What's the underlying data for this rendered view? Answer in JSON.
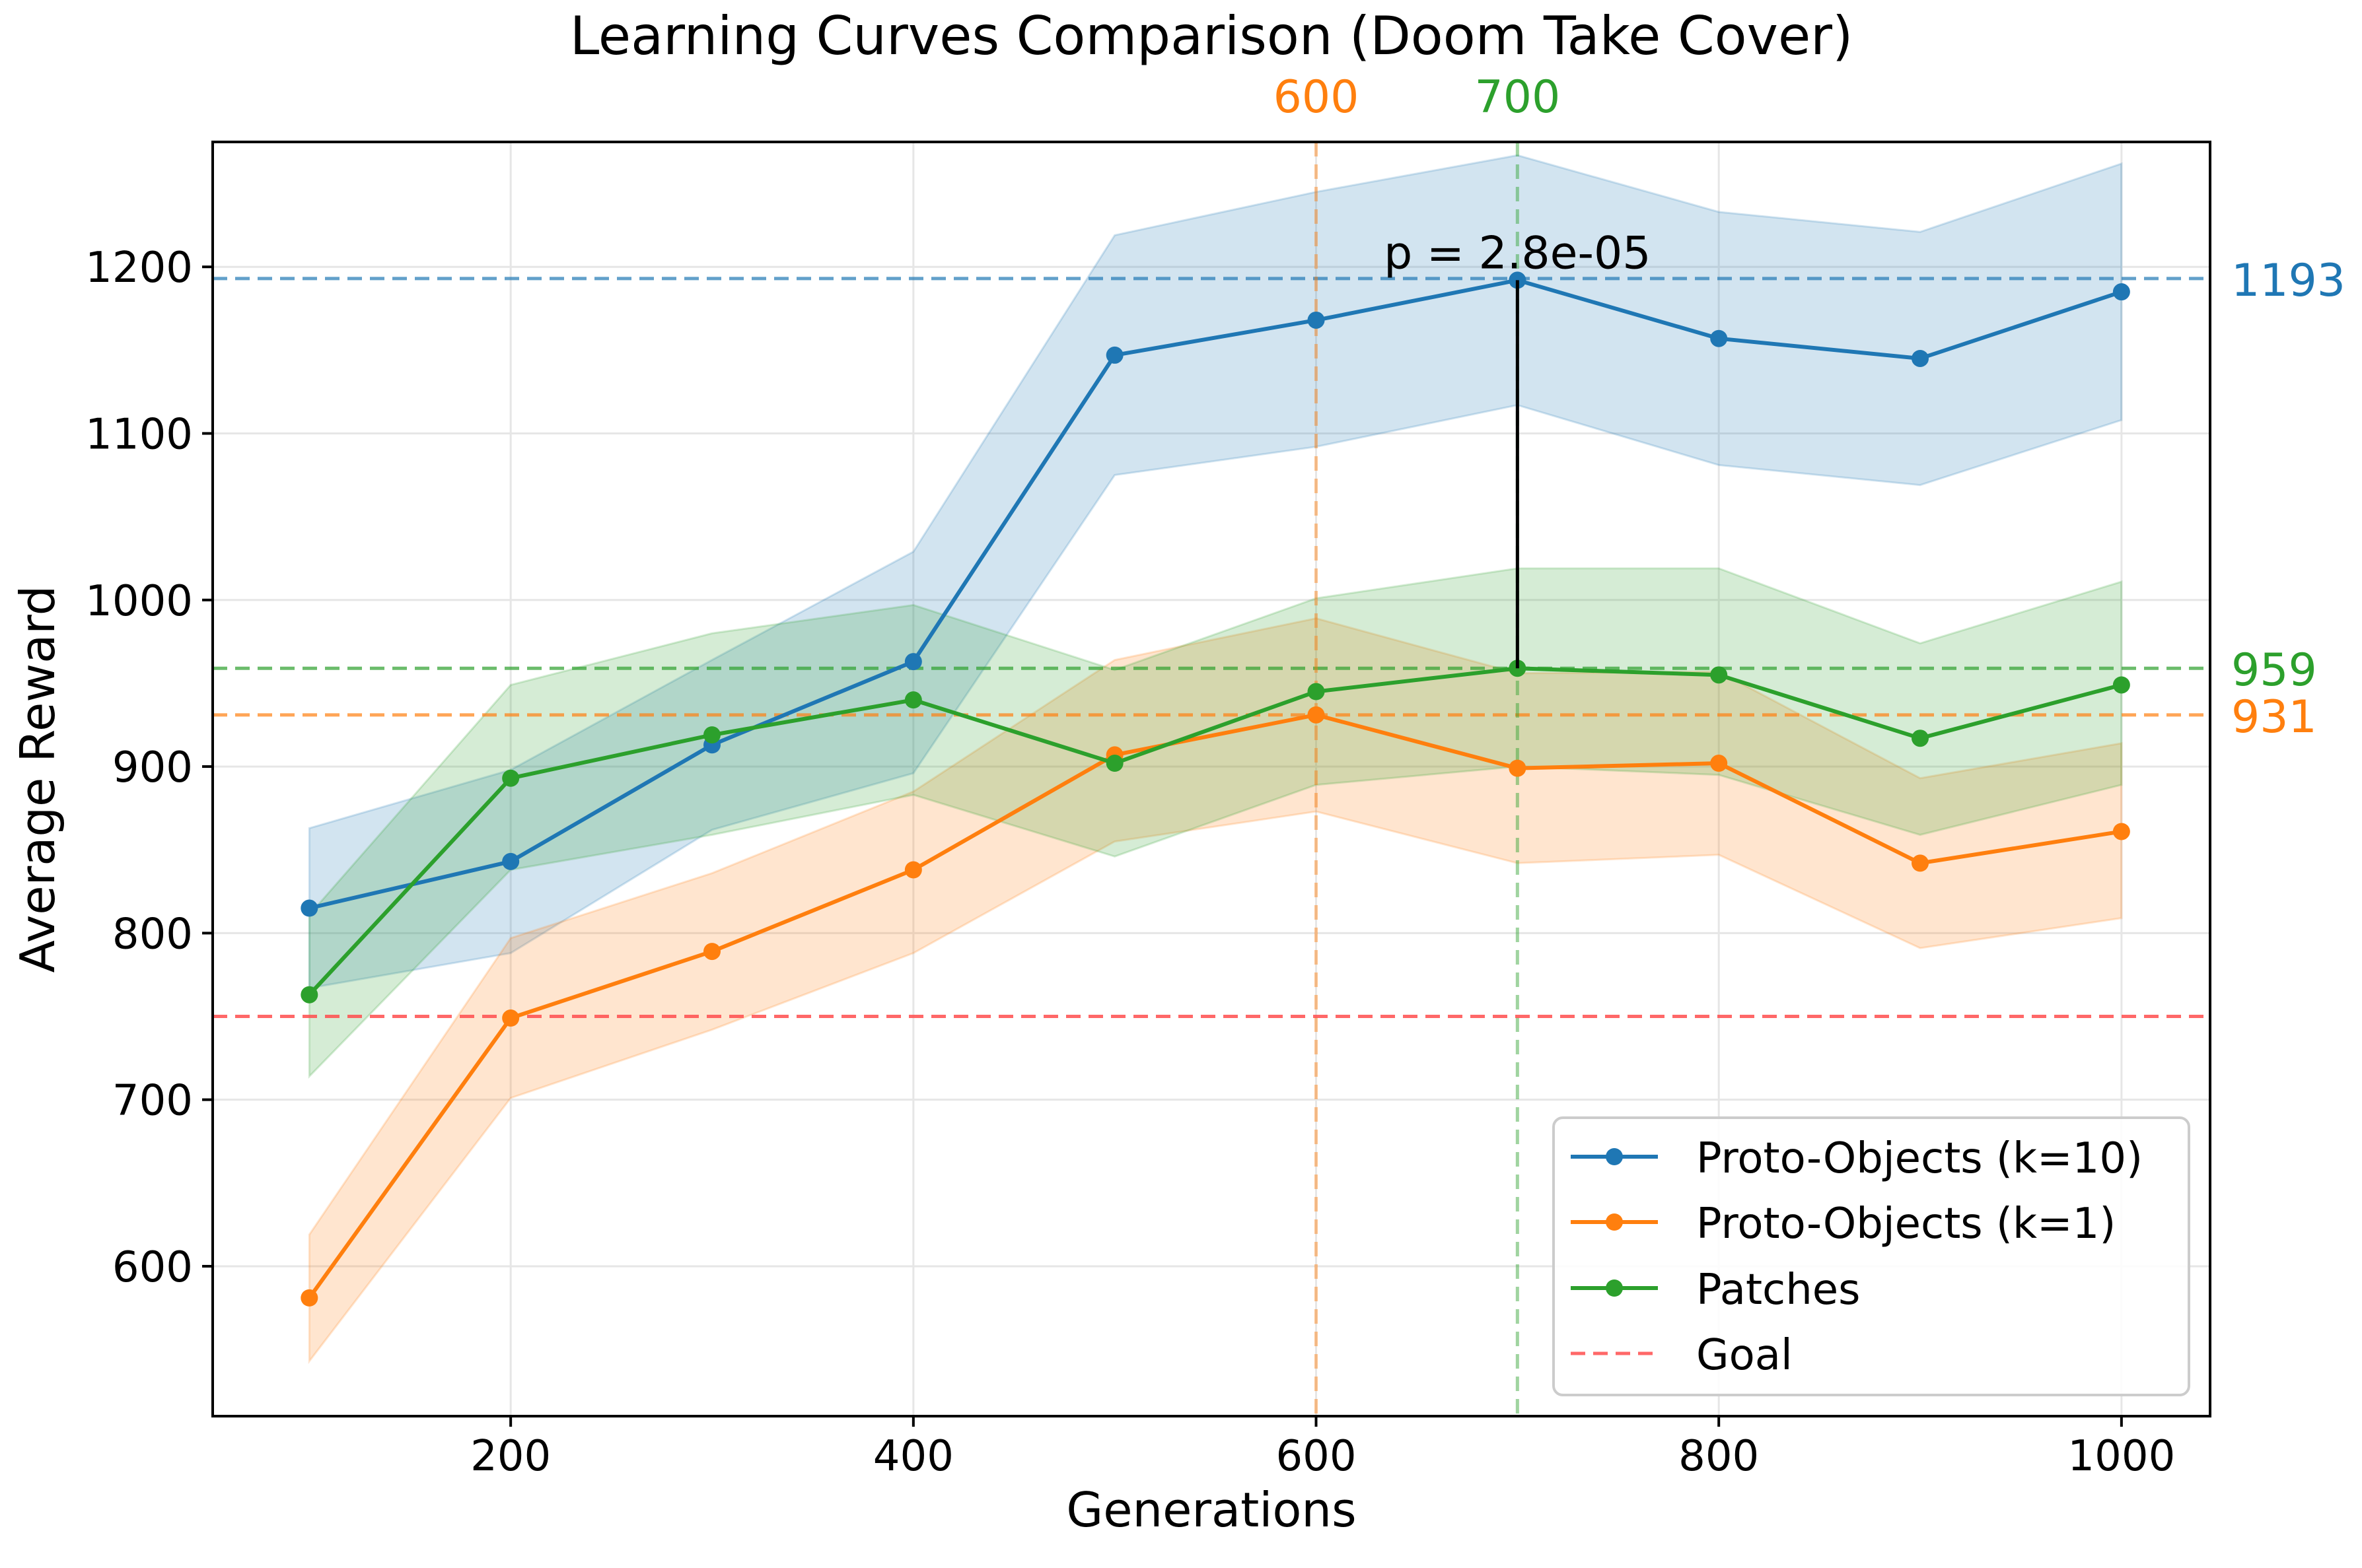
{
  "chart_data": {
    "type": "line",
    "title": "Learning Curves Comparison (Doom Take Cover)",
    "xlabel": "Generations",
    "ylabel": "Average Reward",
    "xlim": [
      52,
      1044
    ],
    "ylim": [
      510,
      1275
    ],
    "xticks": [
      200,
      400,
      600,
      800,
      1000
    ],
    "yticks": [
      600,
      700,
      800,
      900,
      1000,
      1100,
      1200
    ],
    "grid": true,
    "legend_position": "lower-right",
    "x": [
      100,
      200,
      300,
      400,
      500,
      600,
      700,
      800,
      900,
      1000
    ],
    "series": [
      {
        "name": "Proto-Objects (k=10)",
        "color": "#1f77b4",
        "values": [
          815,
          843,
          913,
          963,
          1147,
          1168,
          1192,
          1157,
          1145,
          1185
        ],
        "lower": [
          767,
          788,
          862,
          896,
          1075,
          1092,
          1117,
          1081,
          1069,
          1108
        ],
        "upper": [
          863,
          898,
          964,
          1029,
          1219,
          1245,
          1267,
          1233,
          1221,
          1262
        ]
      },
      {
        "name": "Proto-Objects (k=1)",
        "color": "#ff7f0e",
        "values": [
          581,
          749,
          789,
          838,
          907,
          931,
          899,
          902,
          842,
          861
        ],
        "lower": [
          543,
          701,
          742,
          788,
          855,
          873,
          842,
          847,
          791,
          809
        ],
        "upper": [
          619,
          797,
          836,
          885,
          964,
          989,
          956,
          957,
          893,
          914
        ]
      },
      {
        "name": "Patches",
        "color": "#2ca02c",
        "values": [
          763,
          893,
          919,
          940,
          902,
          945,
          959,
          955,
          917,
          949
        ],
        "lower": [
          714,
          838,
          859,
          883,
          846,
          889,
          900,
          895,
          859,
          889
        ],
        "upper": [
          811,
          949,
          980,
          997,
          958,
          1001,
          1019,
          1019,
          974,
          1011
        ]
      }
    ],
    "goal": {
      "name": "Goal",
      "value": 750,
      "color": "#ff4d4d"
    },
    "peak_lines": [
      {
        "label": "600",
        "x": 600,
        "color": "#ff7f0e"
      },
      {
        "label": "700",
        "x": 700,
        "color": "#2ca02c"
      }
    ],
    "max_lines": [
      {
        "label": "1193",
        "y": 1193,
        "color": "#1f77b4"
      },
      {
        "label": "959",
        "y": 959,
        "color": "#2ca02c"
      },
      {
        "label": "931",
        "y": 931,
        "color": "#ff7f0e"
      }
    ],
    "annotation": {
      "text": "p = 2.8e-05",
      "x": 700,
      "y_from": 959,
      "y_to": 1192
    }
  }
}
